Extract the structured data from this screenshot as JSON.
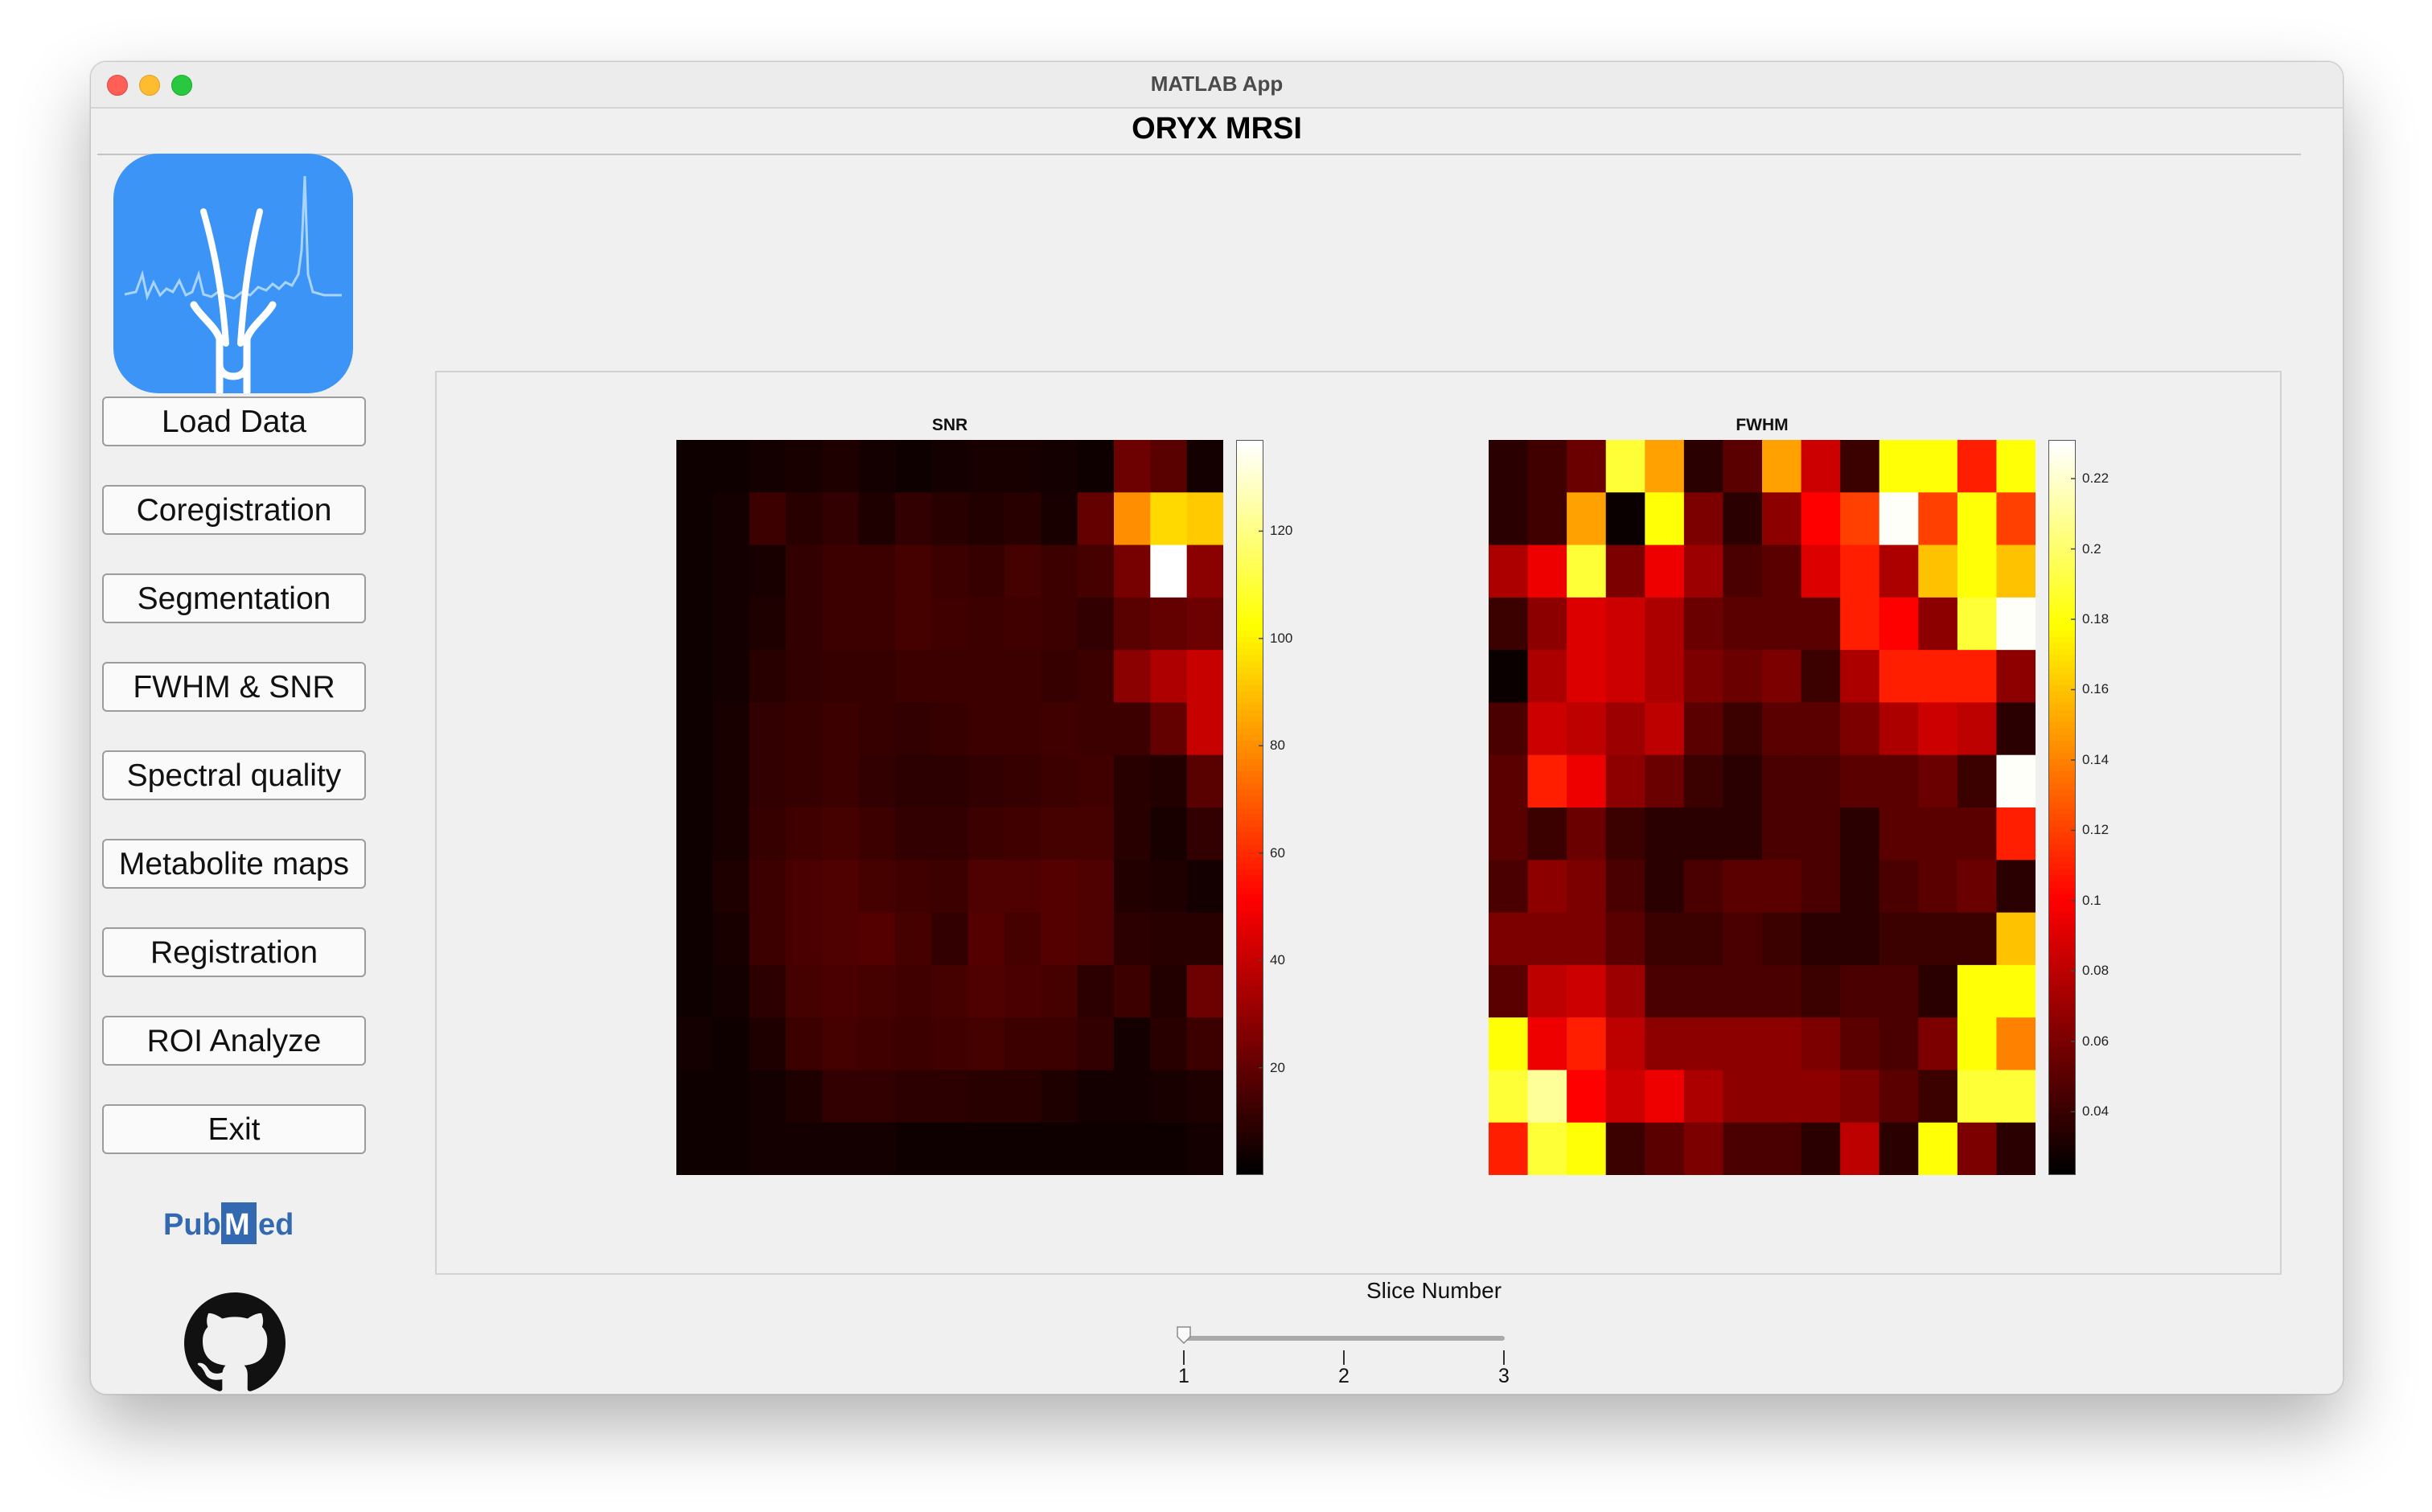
{
  "window": {
    "title": "MATLAB App"
  },
  "app": {
    "title": "ORYX MRSI"
  },
  "sidebar": {
    "buttons": [
      {
        "label": "Load Data"
      },
      {
        "label": "Coregistration"
      },
      {
        "label": "Segmentation"
      },
      {
        "label": "FWHM & SNR"
      },
      {
        "label": "Spectral quality"
      },
      {
        "label": "Metabolite maps"
      },
      {
        "label": "Registration"
      },
      {
        "label": "ROI Analyze"
      },
      {
        "label": "Exit"
      }
    ],
    "pubmed_logo": "pubmed-logo",
    "github_icon": "github-icon"
  },
  "slider": {
    "label": "Slice Number",
    "min": 1,
    "max": 3,
    "value": 1,
    "ticks": [
      "1",
      "2",
      "3"
    ]
  },
  "chart_data": [
    {
      "type": "heatmap",
      "title": "SNR",
      "colormap": "hot",
      "clim": [
        0,
        137
      ],
      "colorbar_ticks": [
        "20",
        "40",
        "60",
        "80",
        "100",
        "120"
      ],
      "colorbar_tick_values": [
        20,
        40,
        60,
        80,
        100,
        120
      ],
      "values": [
        [
          3,
          3,
          4,
          5,
          6,
          4,
          3,
          4,
          5,
          5,
          4,
          3,
          22,
          18,
          4
        ],
        [
          3,
          4,
          12,
          8,
          10,
          6,
          10,
          8,
          7,
          8,
          5,
          20,
          80,
          95,
          92
        ],
        [
          3,
          4,
          5,
          10,
          12,
          12,
          14,
          12,
          11,
          14,
          12,
          14,
          24,
          137,
          28
        ],
        [
          3,
          4,
          6,
          10,
          12,
          12,
          14,
          13,
          12,
          13,
          12,
          10,
          18,
          20,
          22
        ],
        [
          3,
          4,
          8,
          10,
          11,
          11,
          12,
          12,
          12,
          12,
          11,
          12,
          28,
          35,
          40
        ],
        [
          3,
          5,
          10,
          11,
          12,
          11,
          10,
          11,
          12,
          12,
          13,
          12,
          12,
          20,
          40
        ],
        [
          3,
          5,
          10,
          11,
          12,
          10,
          9,
          9,
          10,
          11,
          12,
          13,
          8,
          7,
          18
        ],
        [
          3,
          5,
          11,
          13,
          14,
          12,
          10,
          10,
          12,
          13,
          14,
          14,
          8,
          5,
          10
        ],
        [
          3,
          6,
          12,
          15,
          16,
          14,
          13,
          12,
          16,
          16,
          17,
          16,
          7,
          6,
          4
        ],
        [
          3,
          5,
          12,
          15,
          16,
          17,
          14,
          10,
          17,
          14,
          17,
          16,
          9,
          8,
          8
        ],
        [
          3,
          4,
          9,
          14,
          15,
          14,
          13,
          14,
          16,
          15,
          14,
          9,
          12,
          7,
          22
        ],
        [
          4,
          3,
          6,
          12,
          14,
          13,
          12,
          13,
          14,
          12,
          12,
          10,
          4,
          8,
          12
        ],
        [
          3,
          3,
          4,
          6,
          10,
          10,
          9,
          9,
          8,
          8,
          6,
          4,
          4,
          5,
          6
        ],
        [
          3,
          3,
          4,
          4,
          4,
          4,
          3,
          3,
          3,
          3,
          3,
          3,
          3,
          3,
          4
        ]
      ]
    },
    {
      "type": "heatmap",
      "title": "FWHM",
      "colormap": "hot",
      "clim": [
        0.022,
        0.231
      ],
      "colorbar_ticks": [
        "0.04",
        "0.06",
        "0.08",
        "0.1",
        "0.12",
        "0.14",
        "0.16",
        "0.18",
        "0.2",
        "0.22"
      ],
      "colorbar_tick_values": [
        0.04,
        0.06,
        0.08,
        0.1,
        0.12,
        0.14,
        0.16,
        0.18,
        0.2,
        0.22
      ],
      "values": [
        [
          0.035,
          0.042,
          0.055,
          0.19,
          0.15,
          0.035,
          0.05,
          0.15,
          0.085,
          0.04,
          0.18,
          0.18,
          0.11,
          0.18
        ],
        [
          0.035,
          0.042,
          0.15,
          0.025,
          0.18,
          0.06,
          0.035,
          0.065,
          0.1,
          0.12,
          0.23,
          0.12,
          0.18,
          0.12
        ],
        [
          0.075,
          0.095,
          0.19,
          0.06,
          0.095,
          0.07,
          0.045,
          0.05,
          0.09,
          0.11,
          0.075,
          0.16,
          0.18,
          0.16
        ],
        [
          0.04,
          0.065,
          0.09,
          0.085,
          0.075,
          0.055,
          0.05,
          0.05,
          0.05,
          0.11,
          0.1,
          0.065,
          0.19,
          0.23
        ],
        [
          0.025,
          0.075,
          0.09,
          0.085,
          0.075,
          0.06,
          0.055,
          0.06,
          0.04,
          0.075,
          0.11,
          0.11,
          0.11,
          0.065
        ],
        [
          0.045,
          0.085,
          0.08,
          0.07,
          0.08,
          0.05,
          0.04,
          0.05,
          0.05,
          0.06,
          0.075,
          0.085,
          0.08,
          0.035
        ],
        [
          0.05,
          0.11,
          0.095,
          0.065,
          0.055,
          0.04,
          0.035,
          0.045,
          0.045,
          0.05,
          0.05,
          0.055,
          0.04,
          0.23
        ],
        [
          0.05,
          0.04,
          0.055,
          0.04,
          0.035,
          0.035,
          0.035,
          0.045,
          0.045,
          0.035,
          0.05,
          0.05,
          0.05,
          0.11
        ],
        [
          0.045,
          0.065,
          0.06,
          0.045,
          0.035,
          0.045,
          0.05,
          0.05,
          0.045,
          0.035,
          0.045,
          0.05,
          0.055,
          0.035
        ],
        [
          0.06,
          0.06,
          0.06,
          0.05,
          0.04,
          0.04,
          0.045,
          0.04,
          0.035,
          0.035,
          0.04,
          0.04,
          0.04,
          0.16
        ],
        [
          0.05,
          0.08,
          0.085,
          0.07,
          0.045,
          0.045,
          0.045,
          0.045,
          0.04,
          0.045,
          0.045,
          0.035,
          0.18,
          0.18
        ],
        [
          0.18,
          0.095,
          0.11,
          0.08,
          0.065,
          0.065,
          0.065,
          0.065,
          0.06,
          0.05,
          0.045,
          0.06,
          0.18,
          0.14
        ],
        [
          0.19,
          0.21,
          0.1,
          0.085,
          0.095,
          0.075,
          0.065,
          0.065,
          0.065,
          0.06,
          0.05,
          0.04,
          0.19,
          0.19
        ],
        [
          0.11,
          0.19,
          0.18,
          0.04,
          0.05,
          0.06,
          0.045,
          0.045,
          0.035,
          0.08,
          0.035,
          0.18,
          0.06,
          0.035
        ]
      ]
    }
  ]
}
